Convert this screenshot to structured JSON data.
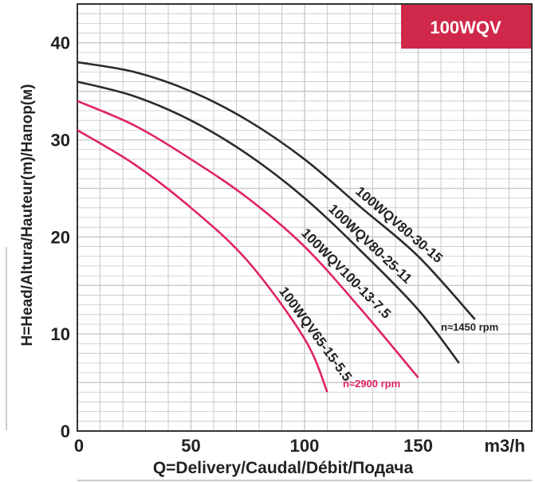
{
  "chart_data": {
    "type": "line",
    "title": "100WQV",
    "xlabel": "Q=Delivery/Caudal/Débit/Подача",
    "ylabel": "H=Head/Altura/Hauteur(m)/Напор(м)",
    "x_unit": "m3/h",
    "xlim": [
      0,
      200
    ],
    "ylim": [
      0,
      44
    ],
    "x_ticks": [
      "0",
      "50",
      "100",
      "150"
    ],
    "y_ticks": [
      "0",
      "10",
      "20",
      "30",
      "40"
    ],
    "grid": true,
    "series": [
      {
        "name": "100WQV80-30-15",
        "speed_group": "1450",
        "color": "#2b2b2b",
        "x": [
          0,
          25,
          50,
          75,
          100,
          125,
          150,
          175
        ],
        "y": [
          38,
          37,
          35,
          32,
          28,
          23,
          18,
          11.5
        ]
      },
      {
        "name": "100WQV80-25-11",
        "speed_group": "1450",
        "color": "#2b2b2b",
        "x": [
          0,
          25,
          50,
          75,
          100,
          125,
          150,
          168
        ],
        "y": [
          36,
          34.5,
          32,
          28.5,
          24,
          18.5,
          12.5,
          7
        ]
      },
      {
        "name": "100WQV100-13-7.5",
        "speed_group": "2900",
        "color": "#e0245e",
        "x": [
          0,
          25,
          50,
          75,
          100,
          125,
          150
        ],
        "y": [
          34,
          31.5,
          28,
          24,
          19,
          12.5,
          5.5
        ]
      },
      {
        "name": "100WQV65-15-5.5",
        "speed_group": "2900",
        "color": "#e0245e",
        "x": [
          0,
          25,
          50,
          75,
          100,
          110
        ],
        "y": [
          31,
          27.5,
          23,
          17.5,
          9.5,
          4
        ]
      }
    ],
    "annotations": [
      {
        "text": "n≈1450 rpm",
        "color": "#222222"
      },
      {
        "text": "n≈2900 rpm",
        "color": "#e0245e"
      }
    ]
  },
  "colors": {
    "badge": "#d0284a",
    "grid": "#c8c8c8",
    "frame": "#333333"
  }
}
